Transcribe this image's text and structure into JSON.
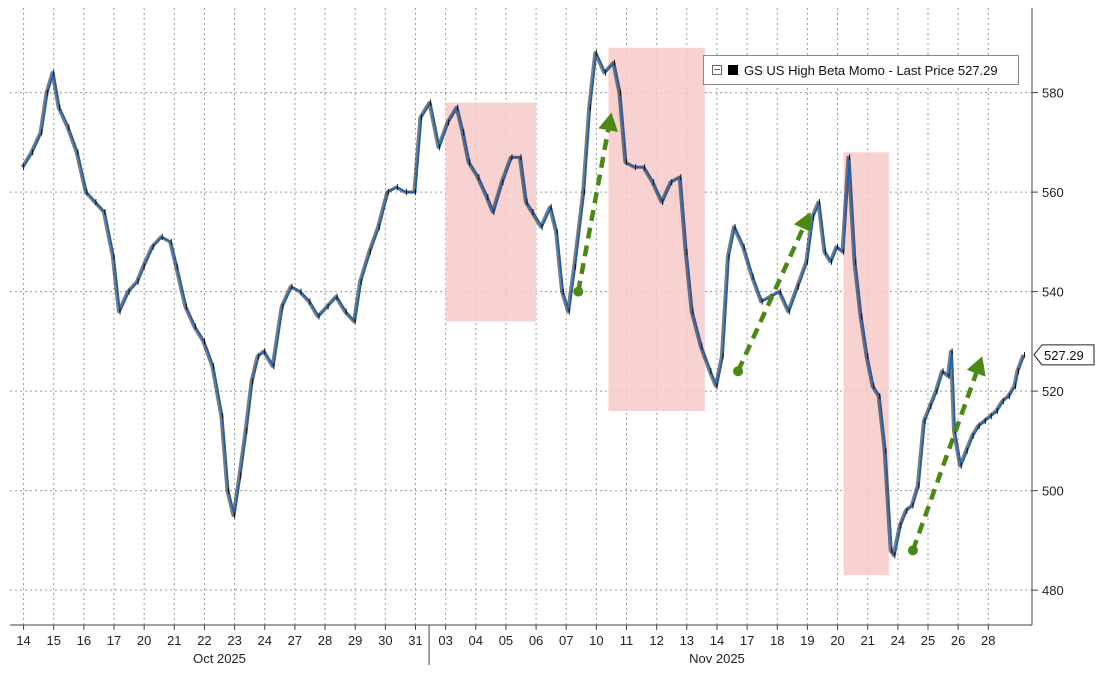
{
  "chart_data": {
    "type": "line",
    "title": "GS US High Beta Momo - Last Price 527.29",
    "series": [
      {
        "name": "GS US High Beta Momo",
        "last_price": 527.29,
        "last_price_label": "527.29",
        "color": "#1e5fae",
        "points": [
          [
            0,
            565
          ],
          [
            0.3,
            568
          ],
          [
            0.6,
            572
          ],
          [
            0.8,
            580
          ],
          [
            1.0,
            584
          ],
          [
            1.2,
            577
          ],
          [
            1.5,
            573
          ],
          [
            1.8,
            568
          ],
          [
            2.1,
            560
          ],
          [
            2.4,
            558
          ],
          [
            2.7,
            556
          ],
          [
            3.0,
            547
          ],
          [
            3.2,
            536
          ],
          [
            3.5,
            540
          ],
          [
            3.8,
            542
          ],
          [
            4.0,
            545
          ],
          [
            4.3,
            549
          ],
          [
            4.6,
            551
          ],
          [
            4.9,
            550
          ],
          [
            5.1,
            545
          ],
          [
            5.4,
            537
          ],
          [
            5.7,
            533
          ],
          [
            6.0,
            530
          ],
          [
            6.3,
            525
          ],
          [
            6.6,
            515
          ],
          [
            6.8,
            500
          ],
          [
            7.0,
            495
          ],
          [
            7.2,
            503
          ],
          [
            7.4,
            512
          ],
          [
            7.6,
            522
          ],
          [
            7.8,
            527
          ],
          [
            8.0,
            528
          ],
          [
            8.3,
            525
          ],
          [
            8.6,
            537
          ],
          [
            8.9,
            541
          ],
          [
            9.2,
            540
          ],
          [
            9.5,
            538
          ],
          [
            9.8,
            535
          ],
          [
            10.1,
            537
          ],
          [
            10.4,
            539
          ],
          [
            10.7,
            536
          ],
          [
            11.0,
            534
          ],
          [
            11.2,
            542
          ],
          [
            11.5,
            548
          ],
          [
            11.8,
            553
          ],
          [
            12.1,
            560
          ],
          [
            12.4,
            561
          ],
          [
            12.7,
            560
          ],
          [
            13.0,
            560
          ],
          [
            13.2,
            575
          ],
          [
            13.5,
            578
          ],
          [
            13.8,
            569
          ],
          [
            14.1,
            574
          ],
          [
            14.4,
            577
          ],
          [
            14.6,
            572
          ],
          [
            14.8,
            566
          ],
          [
            15.1,
            563
          ],
          [
            15.4,
            559
          ],
          [
            15.6,
            556
          ],
          [
            15.9,
            562
          ],
          [
            16.2,
            567
          ],
          [
            16.5,
            567
          ],
          [
            16.7,
            558
          ],
          [
            16.9,
            556
          ],
          [
            17.2,
            553
          ],
          [
            17.5,
            557
          ],
          [
            17.7,
            552
          ],
          [
            17.9,
            540
          ],
          [
            18.1,
            536
          ],
          [
            18.3,
            545
          ],
          [
            18.6,
            560
          ],
          [
            18.8,
            577
          ],
          [
            19.0,
            588
          ],
          [
            19.3,
            584
          ],
          [
            19.6,
            586
          ],
          [
            19.8,
            580
          ],
          [
            20.0,
            566
          ],
          [
            20.3,
            565
          ],
          [
            20.6,
            565
          ],
          [
            20.9,
            562
          ],
          [
            21.2,
            558
          ],
          [
            21.5,
            562
          ],
          [
            21.8,
            563
          ],
          [
            22.0,
            548
          ],
          [
            22.2,
            536
          ],
          [
            22.5,
            529
          ],
          [
            22.8,
            524
          ],
          [
            23.0,
            521
          ],
          [
            23.2,
            527
          ],
          [
            23.4,
            547
          ],
          [
            23.6,
            553
          ],
          [
            23.9,
            549
          ],
          [
            24.2,
            543
          ],
          [
            24.5,
            538
          ],
          [
            24.8,
            539
          ],
          [
            25.1,
            540
          ],
          [
            25.4,
            536
          ],
          [
            25.7,
            541
          ],
          [
            26.0,
            546
          ],
          [
            26.2,
            555
          ],
          [
            26.4,
            558
          ],
          [
            26.6,
            548
          ],
          [
            26.8,
            546
          ],
          [
            27.0,
            549
          ],
          [
            27.2,
            548
          ],
          [
            27.4,
            567
          ],
          [
            27.6,
            546
          ],
          [
            27.8,
            535
          ],
          [
            28.0,
            527
          ],
          [
            28.2,
            521
          ],
          [
            28.4,
            519
          ],
          [
            28.6,
            508
          ],
          [
            28.8,
            488
          ],
          [
            28.9,
            487
          ],
          [
            29.1,
            493
          ],
          [
            29.3,
            496
          ],
          [
            29.5,
            497
          ],
          [
            29.7,
            501
          ],
          [
            29.9,
            514
          ],
          [
            30.1,
            517
          ],
          [
            30.3,
            520
          ],
          [
            30.5,
            524
          ],
          [
            30.7,
            523
          ],
          [
            30.8,
            528
          ],
          [
            30.9,
            512
          ],
          [
            31.1,
            505
          ],
          [
            31.3,
            508
          ],
          [
            31.5,
            511
          ],
          [
            31.7,
            513
          ],
          [
            31.9,
            514
          ],
          [
            32.1,
            515
          ],
          [
            32.3,
            516
          ],
          [
            32.5,
            518
          ],
          [
            32.7,
            519
          ],
          [
            32.9,
            521
          ],
          [
            33.0,
            524
          ],
          [
            33.2,
            527.29
          ]
        ]
      }
    ],
    "x_ticks": [
      "14",
      "15",
      "16",
      "17",
      "20",
      "21",
      "22",
      "23",
      "24",
      "27",
      "28",
      "29",
      "30",
      "31",
      "03",
      "04",
      "05",
      "06",
      "07",
      "10",
      "11",
      "12",
      "13",
      "14",
      "17",
      "18",
      "19",
      "20",
      "21",
      "24",
      "25",
      "26",
      "28"
    ],
    "x_month_labels": [
      {
        "label": "Oct 2025",
        "at": 6.5
      },
      {
        "label": "Nov 2025",
        "at": 23.0
      }
    ],
    "y_ticks": [
      480,
      500,
      520,
      540,
      560,
      580
    ],
    "y_tick_labels": [
      "480",
      "500",
      "520",
      "540",
      "560",
      "580"
    ],
    "ylim": [
      473,
      597
    ],
    "xlim": [
      -0.45,
      33.45
    ],
    "month_divider_at": 13.45,
    "shaded_regions": [
      {
        "x_start": 14.0,
        "x_end": 17.0,
        "y_low": 534,
        "y_high": 578,
        "color": "#f7c9c9"
      },
      {
        "x_start": 19.4,
        "x_end": 22.6,
        "y_low": 516,
        "y_high": 589,
        "color": "#f7c9c9"
      },
      {
        "x_start": 27.2,
        "x_end": 28.7,
        "y_low": 483,
        "y_high": 568,
        "color": "#f7c9c9"
      }
    ],
    "annotation_arrows": [
      {
        "x1": 18.4,
        "y1": 540,
        "x2": 19.5,
        "y2": 576,
        "color": "#4a8a14"
      },
      {
        "x1": 23.7,
        "y1": 524,
        "x2": 26.1,
        "y2": 556,
        "color": "#4a8a14"
      },
      {
        "x1": 29.5,
        "y1": 488,
        "x2": 31.8,
        "y2": 527,
        "color": "#4a8a14"
      }
    ],
    "grid": true
  }
}
